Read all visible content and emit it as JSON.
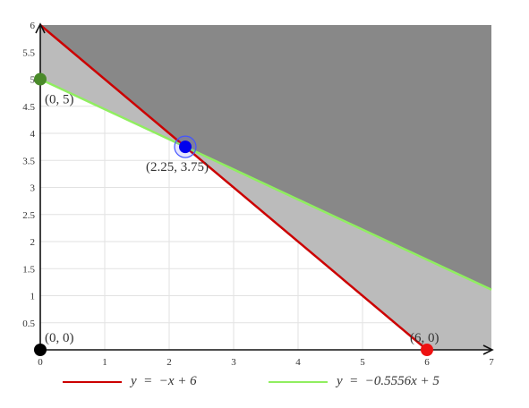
{
  "chart_data": {
    "type": "line",
    "title": "",
    "xlabel": "",
    "ylabel": "",
    "xlim": [
      0,
      7
    ],
    "ylim": [
      0,
      6
    ],
    "x_ticks": [
      "0",
      "1",
      "2",
      "3",
      "4",
      "5",
      "6",
      "7"
    ],
    "y_ticks": [
      "0.5",
      "1",
      "1.5",
      "2",
      "2.5",
      "3",
      "3.5",
      "4",
      "4.5",
      "5",
      "5.5",
      "6"
    ],
    "grid": true,
    "legend_position": "bottom",
    "series": [
      {
        "name": "y = −x + 6",
        "color": "#cc0000",
        "x": [
          0,
          6
        ],
        "y": [
          6,
          0
        ]
      },
      {
        "name": "y = −0.5556x + 5",
        "color": "#90ee60",
        "x": [
          0,
          7
        ],
        "y": [
          5,
          1.1111
        ]
      }
    ],
    "regions": [
      {
        "fill": "#888888",
        "x": [
          0,
          2.25,
          7,
          7,
          0
        ],
        "y": [
          6,
          3.75,
          1.1111,
          6,
          6
        ]
      },
      {
        "fill": "#bbbbbb",
        "x": [
          0,
          2.25,
          0
        ],
        "y": [
          5,
          3.75,
          6
        ]
      },
      {
        "fill": "#bbbbbb",
        "x": [
          2.25,
          7,
          7,
          6
        ],
        "y": [
          3.75,
          1.1111,
          0,
          0
        ]
      }
    ],
    "points": [
      {
        "label": "(0, 0)",
        "x": 0,
        "y": 0,
        "color": "#000000"
      },
      {
        "label": "(0, 5)",
        "x": 0,
        "y": 5,
        "color": "#4a8a2a"
      },
      {
        "label": "(2.25, 3.75)",
        "x": 2.25,
        "y": 3.75,
        "color": "#0000ee",
        "highlight": true
      },
      {
        "label": "(6, 0)",
        "x": 6,
        "y": 0,
        "color": "#ee1111"
      }
    ]
  },
  "legend": {
    "items": [
      {
        "label": "y  =  −x + 6",
        "color": "#cc0000"
      },
      {
        "label": "y  =  −0.5556x + 5",
        "color": "#90ee60"
      }
    ]
  }
}
